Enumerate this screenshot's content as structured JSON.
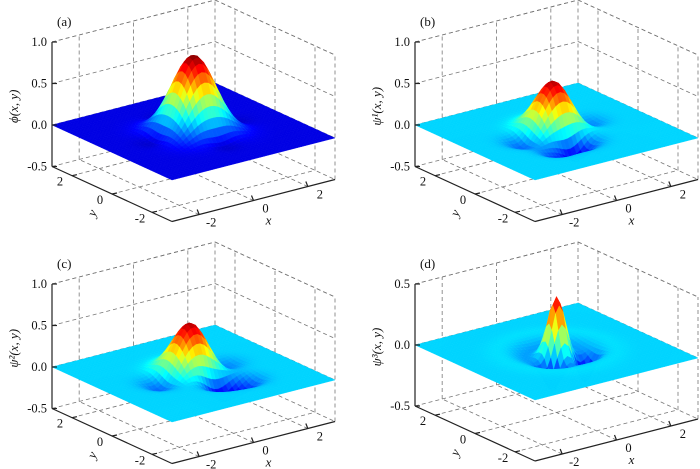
{
  "chart_data": [
    {
      "type": "surface",
      "panel_label": "(a)",
      "zlabel": "ϕ(x, y)",
      "xlabel": "x",
      "ylabel": "y",
      "xticks": [
        "-2",
        "0",
        "2"
      ],
      "yticks": [
        "-2",
        "0",
        "2"
      ],
      "zticks": [
        "-0.5",
        "0.0",
        "0.5",
        "1.0"
      ],
      "xlim": [
        -3,
        3
      ],
      "ylim": [
        -3,
        3
      ],
      "zlim": [
        -0.5,
        1.0
      ],
      "peak": 0.92,
      "min": -0.1,
      "colormap": "jet",
      "grid": true
    },
    {
      "type": "surface",
      "panel_label": "(b)",
      "zlabel": "ψ¹(x, y)",
      "xlabel": "x",
      "ylabel": "y",
      "xticks": [
        "-2",
        "0",
        "2"
      ],
      "yticks": [
        "-2",
        "0",
        "2"
      ],
      "zticks": [
        "-0.5",
        "0.0",
        "0.5",
        "1.0"
      ],
      "xlim": [
        -3,
        3
      ],
      "ylim": [
        -3,
        3
      ],
      "zlim": [
        -0.5,
        1.0
      ],
      "peak": 0.57,
      "min": -0.28,
      "colormap": "jet",
      "grid": true
    },
    {
      "type": "surface",
      "panel_label": "(c)",
      "zlabel": "ψ²(x, y)",
      "xlabel": "x",
      "ylabel": "y",
      "xticks": [
        "-2",
        "0",
        "2"
      ],
      "yticks": [
        "-2",
        "0",
        "2"
      ],
      "zticks": [
        "-0.5",
        "0.0",
        "0.5",
        "1.0"
      ],
      "xlim": [
        -3,
        3
      ],
      "ylim": [
        -3,
        3
      ],
      "zlim": [
        -0.5,
        1.0
      ],
      "peak": 0.57,
      "min": -0.28,
      "colormap": "jet",
      "grid": true
    },
    {
      "type": "surface",
      "panel_label": "(d)",
      "zlabel": "ψ³(x, y)",
      "xlabel": "x",
      "ylabel": "y",
      "xticks": [
        "-2",
        "0",
        "2"
      ],
      "yticks": [
        "-2",
        "0",
        "2"
      ],
      "zticks": [
        "-0.5",
        "0.0",
        "0.5"
      ],
      "xlim": [
        -3,
        3
      ],
      "ylim": [
        -3,
        3
      ],
      "zlim": [
        -0.5,
        0.5
      ],
      "peak": 0.38,
      "min": -0.2,
      "colormap": "jet",
      "grid": true
    }
  ]
}
